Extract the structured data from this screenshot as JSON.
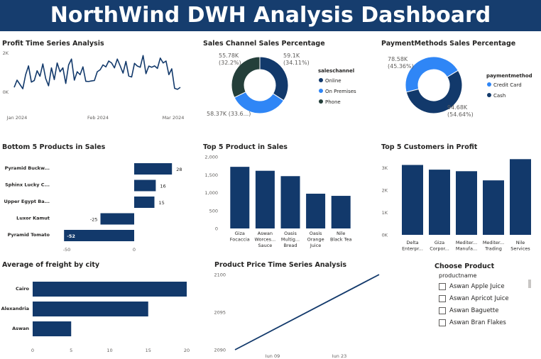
{
  "dashboard": {
    "title": "NorthWind DWH Analysis Dashboard",
    "banner_color": "#163d6e",
    "accent": "#12396b",
    "accent_light": "#2f86f6",
    "accent_dark_green": "#243f3a"
  },
  "visuals": {
    "profit_ts": {
      "title": "Profit Time Series Analysis"
    },
    "sales_channel": {
      "title": "Sales Channel Sales Percentage",
      "legend_title": "saleschannel"
    },
    "payment": {
      "title": "PaymentMethods Sales Percentage",
      "legend_title": "paymentmethod"
    },
    "bottom5": {
      "title": "Bottom 5 Products in Sales"
    },
    "top5products": {
      "title": "Top 5 Product in Sales"
    },
    "top5customers": {
      "title": "Top 5 Customers in Profit"
    },
    "freight": {
      "title": "Average of freight by city"
    },
    "price_ts": {
      "title": "Product Price Time Series Analysis"
    }
  },
  "slicer": {
    "title": "Choose Product",
    "field": "productname",
    "items": [
      "Aswan Apple Juice",
      "Aswan Apricot Juice",
      "Aswan Baguette",
      "Aswan Bran Flakes"
    ]
  },
  "chart_data": [
    {
      "id": "profit_ts",
      "type": "line",
      "x_ticks": [
        "Jan 2024",
        "Feb 2024",
        "Mar 2024"
      ],
      "y_ticks": [
        "0K",
        "2K"
      ],
      "ylim": [
        0,
        2000
      ],
      "series": [
        {
          "values": [
            250,
            620,
            400,
            180,
            900,
            1350,
            520,
            600,
            1100,
            820,
            1450,
            700,
            330,
            1250,
            650,
            1500,
            1050,
            1250,
            450,
            1400,
            1700,
            620,
            1050,
            900,
            1300,
            560,
            550,
            580,
            600,
            1050,
            1150,
            1400,
            1300,
            1600,
            1500,
            1250,
            1700,
            1350,
            980,
            1580,
            830,
            780,
            1480,
            1340,
            1280,
            1880,
            950,
            1340,
            1280,
            1350,
            1220,
            1750,
            1500,
            1600,
            900,
            1200,
            200,
            150,
            250
          ]
        }
      ]
    },
    {
      "id": "sales_channel",
      "type": "pie",
      "labels": [
        "Online",
        "On Premises",
        "Phone"
      ],
      "values": [
        59.1,
        58.37,
        55.78
      ],
      "data_labels": [
        "59.1K\n(34.11%)",
        "58.37K (33.6...)",
        "55.78K\n(32.2%)"
      ],
      "colors": [
        "#12396b",
        "#2f86f6",
        "#243f3a"
      ]
    },
    {
      "id": "payment",
      "type": "pie",
      "labels": [
        "Credit Card",
        "Cash"
      ],
      "values": [
        78.58,
        94.68
      ],
      "data_labels": [
        "78.58K\n(45.36%)",
        "94.68K\n(54.64%)"
      ],
      "colors": [
        "#2f86f6",
        "#12396b"
      ]
    },
    {
      "id": "bottom5",
      "type": "bar",
      "categories": [
        "Pyramid Buckw...",
        "Sphinx Lucky C...",
        "Upper Egypt Ba...",
        "Luxor Kamut",
        "Pyramid Tomato"
      ],
      "values": [
        28,
        16,
        15,
        -25,
        -52
      ],
      "xlim": [
        -60,
        32
      ],
      "x_ticks": [
        -50,
        0
      ]
    },
    {
      "id": "top5products",
      "type": "bar",
      "categories": [
        "Giza\nFocaccia",
        "Aswan\nWorces...\nSauce",
        "Oasis\nMultig...\nBread",
        "Oasis\nOrange\nJuice",
        "Nile\nBlack Tea"
      ],
      "values": [
        1720,
        1610,
        1460,
        970,
        910
      ],
      "ylim": [
        0,
        2000
      ],
      "y_ticks": [
        "0",
        "500",
        "1,000",
        "1,500",
        "2,000"
      ]
    },
    {
      "id": "top5customers",
      "type": "bar",
      "categories": [
        "Delta\nEnterpr...",
        "Giza\nCorpor...",
        "Mediter...\nManufa...",
        "Mediter...\nTrading",
        "Nile\nServices"
      ],
      "values": [
        3130,
        2920,
        2850,
        2440,
        3390
      ],
      "ylim": [
        0,
        3400
      ],
      "y_ticks": [
        "0K",
        "1K",
        "2K",
        "3K"
      ]
    },
    {
      "id": "freight",
      "type": "bar",
      "categories": [
        "Cairo",
        "Alexandria",
        "Aswan"
      ],
      "values": [
        20,
        15,
        5
      ],
      "xlim": [
        0,
        20
      ],
      "x_ticks": [
        0,
        5,
        10,
        15,
        20
      ]
    },
    {
      "id": "price_ts",
      "type": "line",
      "x_ticks": [
        "Jun 09",
        "Jun 23"
      ],
      "y_ticks": [
        "2090",
        "2095",
        "2100"
      ],
      "ylim": [
        2090,
        2100
      ],
      "series": [
        {
          "values": [
            2090,
            2100
          ]
        }
      ]
    }
  ]
}
